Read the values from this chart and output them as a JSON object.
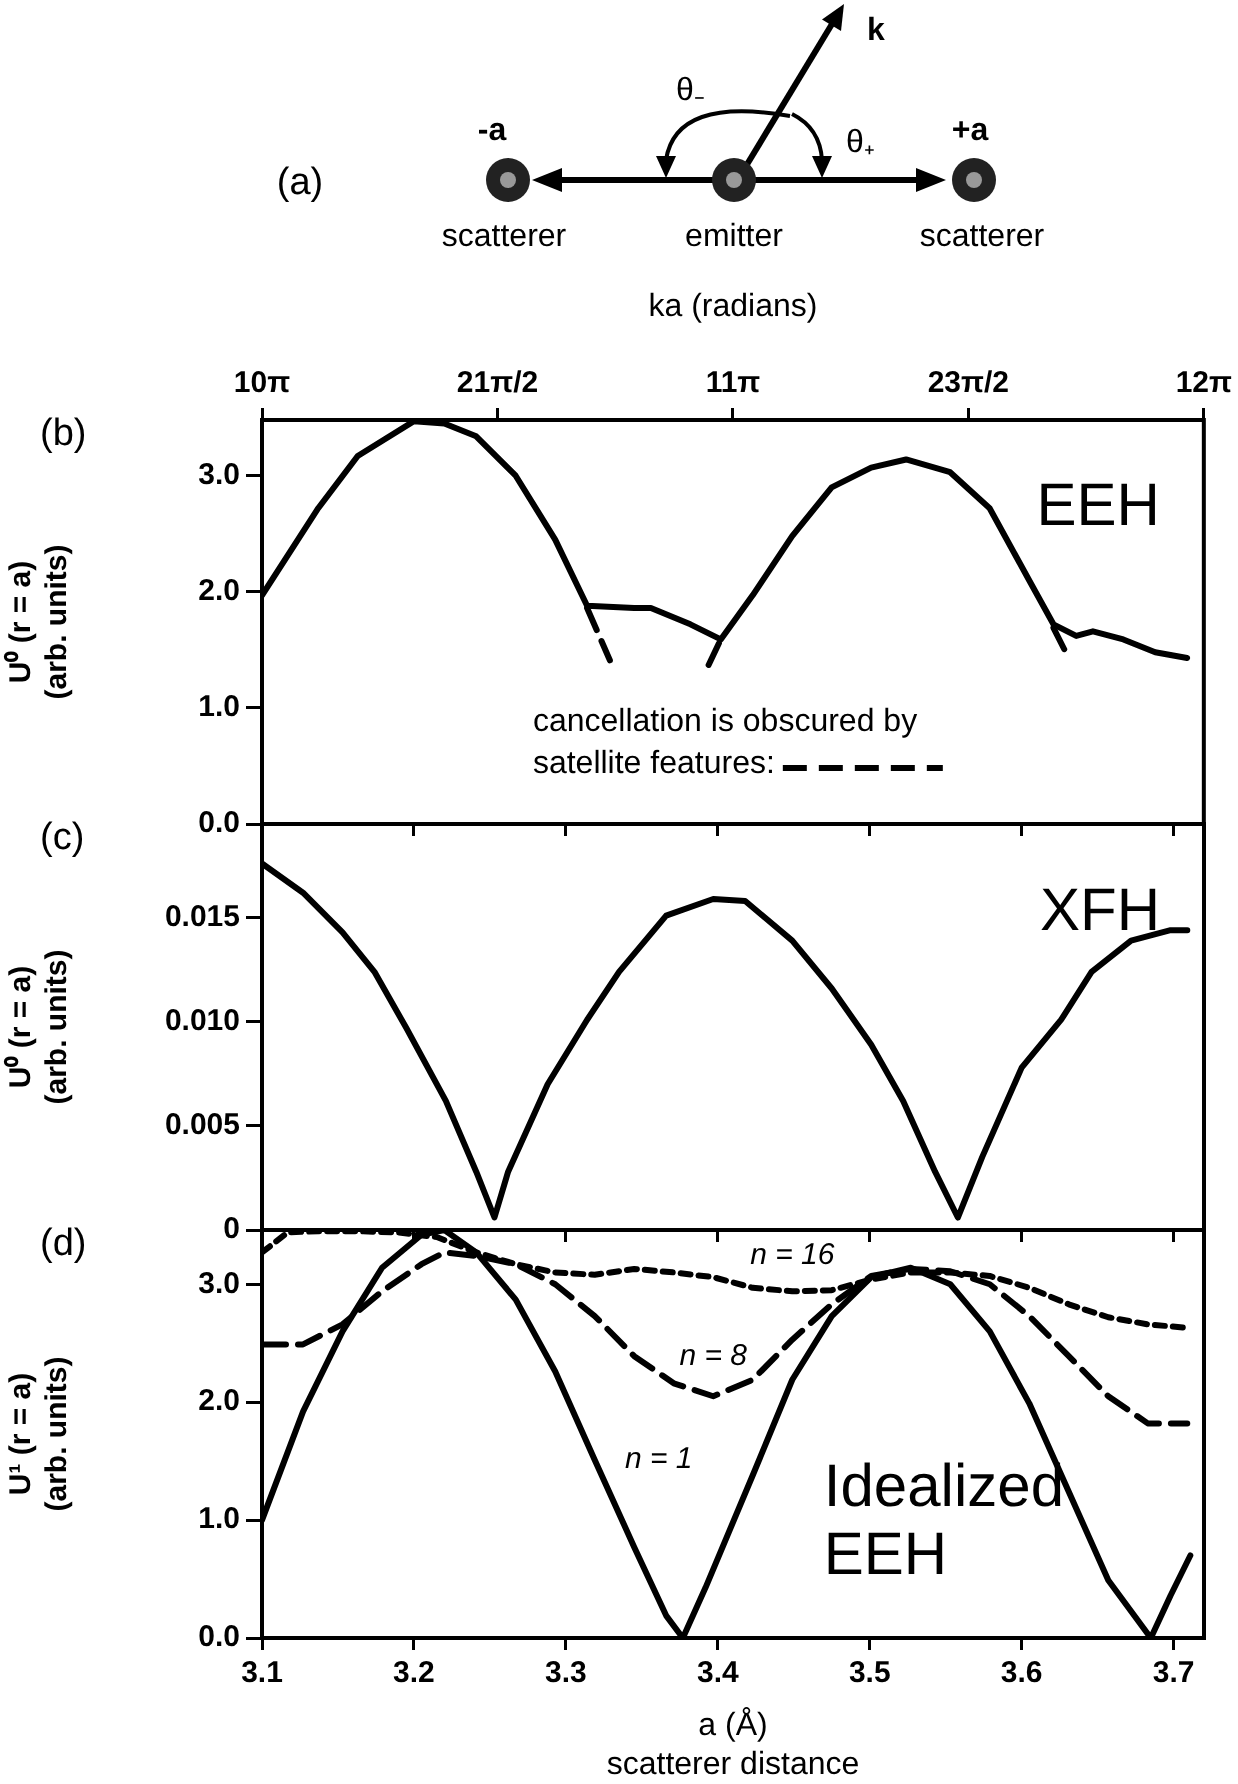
{
  "chart_data": [
    {
      "type": "other",
      "title": "(a)",
      "annotations": [
        "-a",
        "scatterer",
        "emitter",
        "+a",
        "scatterer",
        "k",
        "θ₋",
        "θ₊"
      ]
    },
    {
      "type": "line",
      "title": "(b)",
      "ylabel": "U⁰ (r = a)\n(arb. units)",
      "x2label": "ka (radians)",
      "xlim": [
        3.1,
        3.72
      ],
      "xticks": [
        3.1,
        3.2,
        3.3,
        3.4,
        3.5,
        3.6,
        3.7
      ],
      "x2lim": [
        31.416,
        37.699
      ],
      "x2ticks": [
        {
          "value": 31.416,
          "label": "10π"
        },
        {
          "value": 32.987,
          "label": "21π/2"
        },
        {
          "value": 34.558,
          "label": "11π"
        },
        {
          "value": 36.128,
          "label": "23π/2"
        },
        {
          "value": 37.699,
          "label": "12π"
        }
      ],
      "ylim": [
        0,
        3.48
      ],
      "yticks": [
        {
          "value": 0,
          "label": "0.0"
        },
        {
          "value": 1,
          "label": "1.0"
        },
        {
          "value": 2,
          "label": "2.0"
        },
        {
          "value": 3,
          "label": "3.0"
        }
      ],
      "tick_labels": "y",
      "grid": false,
      "marker": "none",
      "legend": "bottom",
      "annotations": [
        "EEH"
      ],
      "series": [
        {
          "color": "#000000",
          "line_style": "solid",
          "x": [
            3.1,
            3.137,
            3.163,
            3.2,
            3.22,
            3.241,
            3.267,
            3.293,
            3.314,
            3.345,
            3.356,
            3.382,
            3.402,
            3.423,
            3.449,
            3.475,
            3.501,
            3.524,
            3.553,
            3.579,
            3.605,
            3.621,
            3.636,
            3.647,
            3.667,
            3.688,
            3.709
          ],
          "values": [
            1.97,
            2.72,
            3.17,
            3.47,
            3.45,
            3.34,
            3.0,
            2.45,
            1.88,
            1.86,
            1.86,
            1.72,
            1.59,
            1.97,
            2.48,
            2.9,
            3.07,
            3.14,
            3.03,
            2.72,
            2.1,
            1.72,
            1.62,
            1.66,
            1.59,
            1.48,
            1.43
          ]
        },
        {
          "name": "cancellation is obscured by satellite features:",
          "color": "#000000",
          "line_style": "dashed",
          "x": [
            3.314,
            3.329,
            3.36,
            3.394,
            3.402,
            3.5,
            3.621,
            3.631
          ],
          "values": [
            1.86,
            1.41,
            null,
            1.37,
            1.59,
            null,
            1.69,
            1.43
          ]
        }
      ]
    },
    {
      "type": "line",
      "title": "(c)",
      "ylabel": "U⁰ (r = a)\n(arb. units)",
      "xlim": [
        3.1,
        3.72
      ],
      "xticks": [
        3.1,
        3.2,
        3.3,
        3.4,
        3.5,
        3.6,
        3.7
      ],
      "ylim": [
        0,
        0.0195
      ],
      "yticks": [
        {
          "value": 0,
          "label": "0"
        },
        0.005,
        {
          "value": 0.01,
          "label": "0.010"
        },
        0.015
      ],
      "tick_labels": "y",
      "grid": false,
      "marker": "none",
      "annotations": [
        "XFH"
      ],
      "series": [
        {
          "color": "#000000",
          "line_style": "solid",
          "x": [
            3.1,
            3.127,
            3.153,
            3.174,
            3.195,
            3.221,
            3.241,
            3.253,
            3.262,
            3.288,
            3.314,
            3.335,
            3.366,
            3.397,
            3.418,
            3.449,
            3.475,
            3.501,
            3.522,
            3.543,
            3.558,
            3.574,
            3.6,
            3.626,
            3.646,
            3.672,
            3.698,
            3.709
          ],
          "values": [
            0.0176,
            0.0162,
            0.0143,
            0.0124,
            0.0097,
            0.0062,
            0.0028,
            0.0006,
            0.0028,
            0.007,
            0.0101,
            0.0124,
            0.0151,
            0.0159,
            0.0158,
            0.0139,
            0.0116,
            0.0089,
            0.0062,
            0.0028,
            0.0006,
            0.0035,
            0.0078,
            0.0101,
            0.0124,
            0.0139,
            0.0144,
            0.0144
          ]
        }
      ]
    },
    {
      "type": "line",
      "title": "(d)",
      "ylabel": "U¹ (r = a)\n(arb. units)",
      "xlabel": "a (Å)\nscatterer distance",
      "xlim": [
        3.1,
        3.72
      ],
      "xticks": [
        3.1,
        3.2,
        3.3,
        3.4,
        3.5,
        3.6,
        3.7
      ],
      "ylim": [
        0,
        3.46
      ],
      "yticks": [
        {
          "value": 0,
          "label": "0.0"
        },
        {
          "value": 1,
          "label": "1.0"
        },
        {
          "value": 2,
          "label": "2.0"
        },
        {
          "value": 3,
          "label": "3.0"
        }
      ],
      "grid": false,
      "marker": "none",
      "annotations": [
        "Idealized EEH",
        {
          "text": "n = 16",
          "x": 3.449,
          "y": 2.94
        },
        {
          "text": "n = 8",
          "x": 3.397,
          "y": 2.05
        },
        {
          "text": "n = 1",
          "x": 3.319,
          "y": 1.51
        }
      ],
      "series": [
        {
          "color": "#000000",
          "line_style": "solid",
          "x": [
            3.1,
            3.127,
            3.153,
            3.179,
            3.205,
            3.22,
            3.241,
            3.267,
            3.293,
            3.319,
            3.345,
            3.366,
            3.377,
            3.392,
            3.423,
            3.449,
            3.475,
            3.501,
            3.527,
            3.553,
            3.579,
            3.605,
            3.631,
            3.657,
            3.685,
            3.698,
            3.711
          ],
          "values": [
            1.0,
            1.92,
            2.6,
            3.14,
            3.42,
            3.46,
            3.27,
            2.87,
            2.26,
            1.51,
            0.77,
            0.19,
            0,
            0.43,
            1.38,
            2.19,
            2.73,
            3.06,
            3.14,
            3.0,
            2.6,
            1.99,
            1.24,
            0.49,
            0,
            0.36,
            0.7
          ]
        },
        {
          "color": "#000000",
          "line_style": "dashed",
          "x": [
            3.1,
            3.127,
            3.153,
            3.179,
            3.205,
            3.22,
            3.241,
            3.267,
            3.293,
            3.319,
            3.345,
            3.371,
            3.397,
            3.423,
            3.449,
            3.475,
            3.501,
            3.527,
            3.553,
            3.579,
            3.605,
            3.631,
            3.657,
            3.683,
            3.709
          ],
          "values": [
            2.49,
            2.49,
            2.66,
            2.94,
            3.17,
            3.27,
            3.24,
            3.17,
            3.0,
            2.73,
            2.39,
            2.16,
            2.05,
            2.19,
            2.53,
            2.83,
            3.07,
            3.13,
            3.11,
            3.0,
            2.73,
            2.39,
            2.05,
            1.82,
            1.82
          ]
        },
        {
          "color": "#000000",
          "line_style": "dotted",
          "x": [
            3.1,
            3.117,
            3.137,
            3.163,
            3.189,
            3.215,
            3.241,
            3.267,
            3.293,
            3.319,
            3.345,
            3.371,
            3.397,
            3.423,
            3.449,
            3.475,
            3.501,
            3.527,
            3.553,
            3.579,
            3.605,
            3.631,
            3.657,
            3.683,
            3.709
          ],
          "values": [
            3.27,
            3.44,
            3.45,
            3.45,
            3.44,
            3.4,
            3.27,
            3.17,
            3.1,
            3.08,
            3.13,
            3.1,
            3.06,
            2.97,
            2.94,
            2.95,
            3.04,
            3.1,
            3.1,
            3.07,
            2.97,
            2.83,
            2.72,
            2.66,
            2.63
          ]
        }
      ]
    }
  ]
}
